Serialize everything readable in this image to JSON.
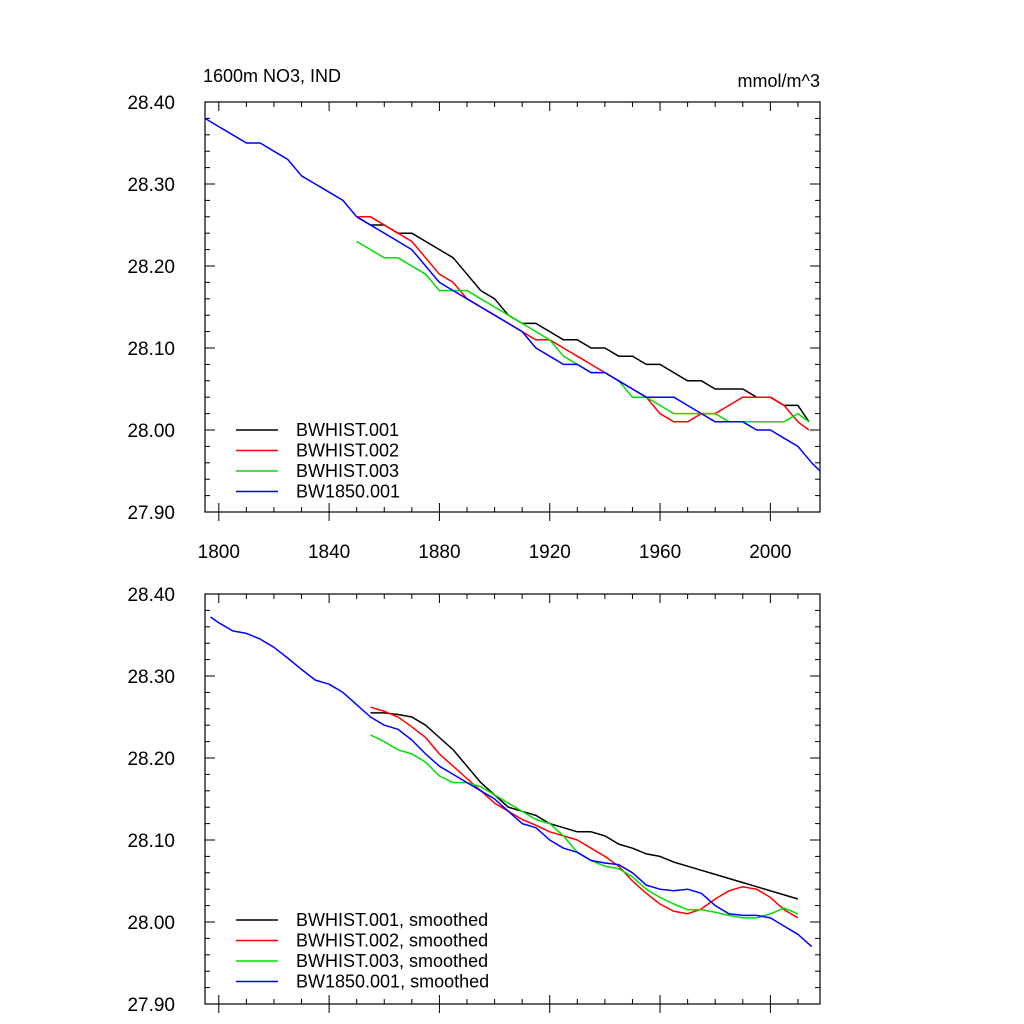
{
  "title_left": "1600m NO3, IND",
  "title_right": "mmol/m^3",
  "chart_data": [
    {
      "type": "line",
      "title": "1600m NO3, IND",
      "units": "mmol/m^3",
      "xlim": [
        1795,
        2018
      ],
      "ylim": [
        27.9,
        28.4
      ],
      "x_ticks": [
        1800,
        1840,
        1880,
        1920,
        1960,
        2000
      ],
      "x_tick_labels": [
        "1800",
        "1840",
        "1880",
        "1920",
        "1960",
        "2000"
      ],
      "y_ticks": [
        27.9,
        28.0,
        28.1,
        28.2,
        28.3,
        28.4
      ],
      "y_tick_labels": [
        "27.90",
        "28.00",
        "28.10",
        "28.20",
        "28.30",
        "28.40"
      ],
      "legend_position": "bottom-left",
      "series": [
        {
          "name": "BWHIST.001",
          "color": "#000000",
          "x": [
            1850,
            1855,
            1860,
            1865,
            1870,
            1875,
            1880,
            1885,
            1890,
            1895,
            1900,
            1905,
            1910,
            1915,
            1920,
            1925,
            1930,
            1935,
            1940,
            1945,
            1950,
            1955,
            1960,
            1965,
            1970,
            1975,
            1980,
            1985,
            1990,
            1995,
            2000,
            2005,
            2010,
            2014
          ],
          "values": [
            28.26,
            28.25,
            28.25,
            28.24,
            28.24,
            28.23,
            28.22,
            28.21,
            28.19,
            28.17,
            28.16,
            28.14,
            28.13,
            28.13,
            28.12,
            28.11,
            28.11,
            28.1,
            28.1,
            28.09,
            28.09,
            28.08,
            28.08,
            28.07,
            28.06,
            28.06,
            28.05,
            28.05,
            28.05,
            28.04,
            28.04,
            28.03,
            28.03,
            28.01
          ]
        },
        {
          "name": "BWHIST.002",
          "color": "#ff0000",
          "x": [
            1850,
            1855,
            1860,
            1865,
            1870,
            1875,
            1880,
            1885,
            1890,
            1895,
            1900,
            1905,
            1910,
            1915,
            1920,
            1925,
            1930,
            1935,
            1940,
            1945,
            1950,
            1955,
            1960,
            1965,
            1970,
            1975,
            1980,
            1985,
            1990,
            1995,
            2000,
            2005,
            2010,
            2014
          ],
          "values": [
            28.26,
            28.26,
            28.25,
            28.24,
            28.23,
            28.21,
            28.19,
            28.18,
            28.16,
            28.15,
            28.14,
            28.13,
            28.12,
            28.11,
            28.11,
            28.1,
            28.09,
            28.08,
            28.07,
            28.06,
            28.05,
            28.04,
            28.02,
            28.01,
            28.01,
            28.02,
            28.02,
            28.03,
            28.04,
            28.04,
            28.04,
            28.03,
            28.01,
            28.0
          ]
        },
        {
          "name": "BWHIST.003",
          "color": "#00dd00",
          "x": [
            1850,
            1855,
            1860,
            1865,
            1870,
            1875,
            1880,
            1885,
            1890,
            1895,
            1900,
            1905,
            1910,
            1915,
            1920,
            1925,
            1930,
            1935,
            1940,
            1945,
            1950,
            1955,
            1960,
            1965,
            1970,
            1975,
            1980,
            1985,
            1990,
            1995,
            2000,
            2005,
            2010,
            2014
          ],
          "values": [
            28.23,
            28.22,
            28.21,
            28.21,
            28.2,
            28.19,
            28.17,
            28.17,
            28.17,
            28.16,
            28.15,
            28.14,
            28.13,
            28.12,
            28.11,
            28.09,
            28.08,
            28.07,
            28.07,
            28.06,
            28.04,
            28.04,
            28.03,
            28.02,
            28.02,
            28.02,
            28.02,
            28.01,
            28.01,
            28.01,
            28.01,
            28.01,
            28.02,
            28.01
          ]
        },
        {
          "name": "BW1850.001",
          "color": "#0000ff",
          "x": [
            1795,
            1800,
            1805,
            1810,
            1815,
            1820,
            1825,
            1830,
            1835,
            1840,
            1845,
            1850,
            1855,
            1860,
            1865,
            1870,
            1875,
            1880,
            1885,
            1890,
            1895,
            1900,
            1905,
            1910,
            1915,
            1920,
            1925,
            1930,
            1935,
            1940,
            1945,
            1950,
            1955,
            1960,
            1965,
            1970,
            1975,
            1980,
            1985,
            1990,
            1995,
            2000,
            2005,
            2010,
            2015,
            2018
          ],
          "values": [
            28.38,
            28.37,
            28.36,
            28.35,
            28.35,
            28.34,
            28.33,
            28.31,
            28.3,
            28.29,
            28.28,
            28.26,
            28.25,
            28.24,
            28.23,
            28.22,
            28.2,
            28.18,
            28.17,
            28.16,
            28.15,
            28.14,
            28.13,
            28.12,
            28.1,
            28.09,
            28.08,
            28.08,
            28.07,
            28.07,
            28.06,
            28.05,
            28.04,
            28.04,
            28.04,
            28.03,
            28.02,
            28.01,
            28.01,
            28.01,
            28.0,
            28.0,
            27.99,
            27.98,
            27.96,
            27.95
          ]
        }
      ]
    },
    {
      "type": "line",
      "xlim": [
        1795,
        2018
      ],
      "ylim": [
        27.9,
        28.4
      ],
      "x_ticks": [
        1800,
        1840,
        1880,
        1920,
        1960,
        2000
      ],
      "y_ticks": [
        27.9,
        28.0,
        28.1,
        28.2,
        28.3,
        28.4
      ],
      "y_tick_labels": [
        "27.90",
        "28.00",
        "28.10",
        "28.20",
        "28.30",
        "28.40"
      ],
      "legend_position": "bottom-left",
      "series": [
        {
          "name": "BWHIST.001, smoothed",
          "color": "#000000",
          "x": [
            1855,
            1860,
            1865,
            1870,
            1875,
            1880,
            1885,
            1890,
            1895,
            1900,
            1905,
            1910,
            1915,
            1920,
            1925,
            1930,
            1935,
            1940,
            1945,
            1950,
            1955,
            1960,
            1965,
            1970,
            1975,
            1980,
            1985,
            1990,
            1995,
            2000,
            2005,
            2010
          ],
          "values": [
            28.255,
            28.255,
            28.253,
            28.25,
            28.24,
            28.225,
            28.21,
            28.19,
            28.17,
            28.155,
            28.14,
            28.135,
            28.13,
            28.12,
            28.115,
            28.11,
            28.11,
            28.105,
            28.095,
            28.09,
            28.083,
            28.08,
            28.073,
            28.068,
            28.063,
            28.058,
            28.053,
            28.048,
            28.043,
            28.038,
            28.033,
            28.028
          ]
        },
        {
          "name": "BWHIST.002, smoothed",
          "color": "#ff0000",
          "x": [
            1855,
            1860,
            1865,
            1870,
            1875,
            1880,
            1885,
            1890,
            1895,
            1900,
            1905,
            1910,
            1915,
            1920,
            1925,
            1930,
            1935,
            1940,
            1945,
            1950,
            1955,
            1960,
            1965,
            1970,
            1975,
            1980,
            1985,
            1990,
            1995,
            2000,
            2005,
            2010
          ],
          "values": [
            28.262,
            28.257,
            28.25,
            28.238,
            28.225,
            28.205,
            28.19,
            28.175,
            28.16,
            28.145,
            28.135,
            28.125,
            28.118,
            28.11,
            28.105,
            28.1,
            28.09,
            28.08,
            28.068,
            28.05,
            28.035,
            28.022,
            28.013,
            28.01,
            28.016,
            28.028,
            28.038,
            28.043,
            28.04,
            28.03,
            28.015,
            28.005
          ]
        },
        {
          "name": "BWHIST.003, smoothed",
          "color": "#00dd00",
          "x": [
            1855,
            1860,
            1865,
            1870,
            1875,
            1880,
            1885,
            1890,
            1895,
            1900,
            1905,
            1910,
            1915,
            1920,
            1925,
            1930,
            1935,
            1940,
            1945,
            1950,
            1955,
            1960,
            1965,
            1970,
            1975,
            1980,
            1985,
            1990,
            1995,
            2000,
            2005,
            2010
          ],
          "values": [
            28.228,
            28.22,
            28.21,
            28.205,
            28.195,
            28.178,
            28.17,
            28.17,
            28.165,
            28.155,
            28.145,
            28.135,
            28.125,
            28.12,
            28.105,
            28.085,
            28.075,
            28.068,
            28.065,
            28.055,
            28.04,
            28.03,
            28.022,
            28.015,
            28.015,
            28.012,
            28.008,
            28.005,
            28.005,
            28.01,
            28.017,
            28.01
          ]
        },
        {
          "name": "BW1850.001, smoothed",
          "color": "#0000ff",
          "x": [
            1797,
            1800,
            1805,
            1810,
            1815,
            1820,
            1825,
            1830,
            1835,
            1840,
            1845,
            1850,
            1855,
            1860,
            1865,
            1870,
            1875,
            1880,
            1885,
            1890,
            1895,
            1900,
            1905,
            1910,
            1915,
            1920,
            1925,
            1930,
            1935,
            1940,
            1945,
            1950,
            1955,
            1960,
            1965,
            1970,
            1975,
            1980,
            1985,
            1990,
            1995,
            2000,
            2005,
            2010,
            2015
          ],
          "values": [
            28.372,
            28.365,
            28.355,
            28.352,
            28.345,
            28.335,
            28.322,
            28.308,
            28.295,
            28.29,
            28.28,
            28.265,
            28.25,
            28.24,
            28.235,
            28.222,
            28.205,
            28.19,
            28.18,
            28.17,
            28.16,
            28.15,
            28.135,
            28.12,
            28.115,
            28.1,
            28.09,
            28.085,
            28.075,
            28.072,
            28.07,
            28.06,
            28.045,
            28.04,
            28.038,
            28.04,
            28.035,
            28.02,
            28.01,
            28.008,
            28.008,
            28.005,
            27.995,
            27.985,
            27.97
          ]
        }
      ]
    }
  ]
}
